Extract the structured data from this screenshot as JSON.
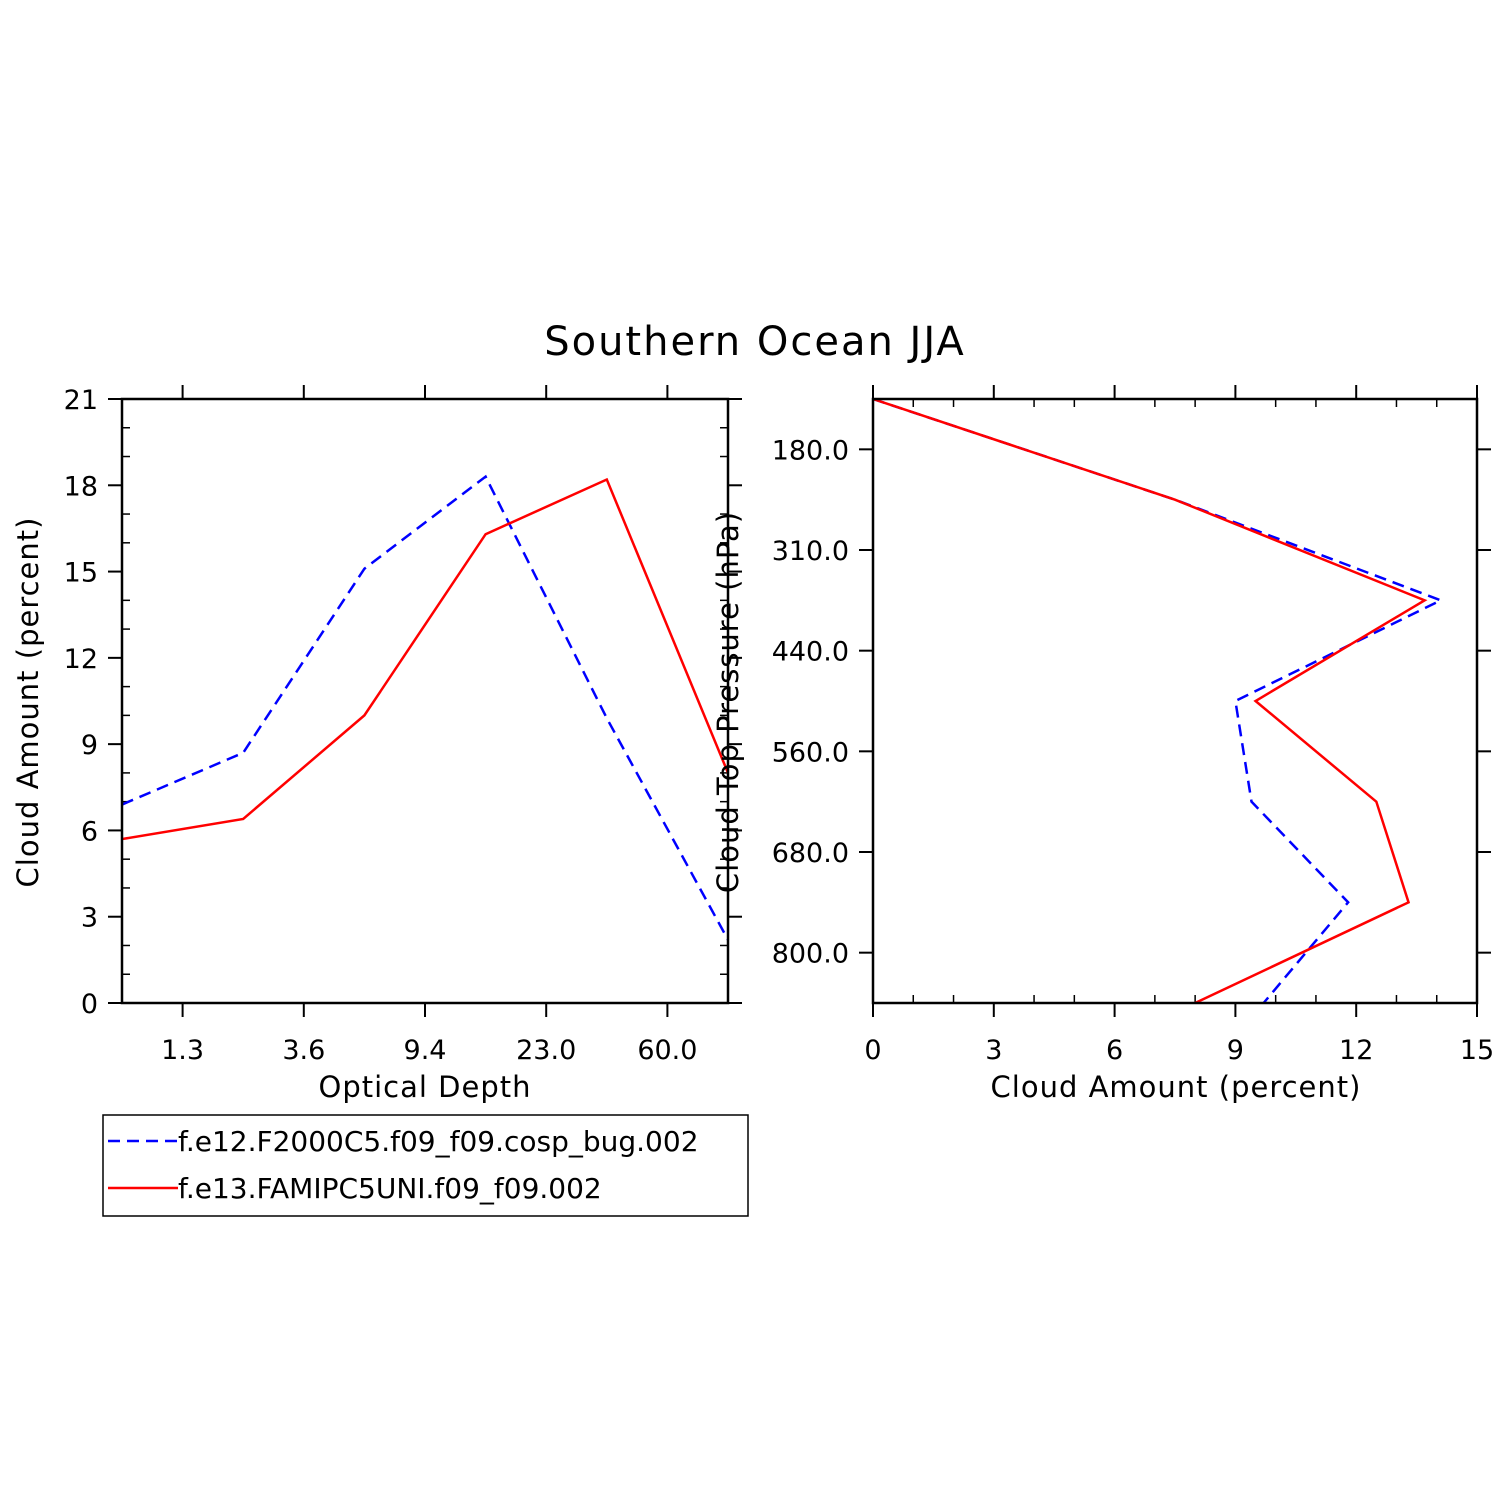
{
  "title": "Southern Ocean JJA",
  "colors": {
    "series1": "#0000ff",
    "series2": "#ff0000",
    "axes": "#000000"
  },
  "chart_data": [
    {
      "type": "line",
      "xlabel": "Optical Depth",
      "ylabel": "Cloud Amount (percent)",
      "x_tick_labels": [
        "1.3",
        "3.6",
        "9.4",
        "23.0",
        "60.0"
      ],
      "ylim": [
        0,
        21
      ],
      "y_ticks": [
        0,
        3,
        6,
        9,
        12,
        15,
        18,
        21
      ],
      "x_bins": [
        0,
        1,
        2,
        3,
        4,
        5
      ],
      "series": [
        {
          "name": "f.e12.F2000C5.f09_f09.cosp_bug.002",
          "style": "dashed",
          "color": "#0000ff",
          "values": [
            6.9,
            8.7,
            15.1,
            18.3,
            9.9,
            2.2
          ]
        },
        {
          "name": "f.e13.FAMIPC5UNI.f09_f09.002",
          "style": "solid",
          "color": "#ff0000",
          "values": [
            5.7,
            6.4,
            10.0,
            16.3,
            18.2,
            8.0
          ]
        }
      ],
      "legend_position": "below-left"
    },
    {
      "type": "line",
      "orientation": "horizontal-profile",
      "xlabel": "Cloud Amount (percent)",
      "ylabel": "Cloud Top Pressure (hPa)",
      "xlim": [
        0,
        15
      ],
      "x_ticks": [
        0,
        3,
        6,
        9,
        12,
        15
      ],
      "y_tick_labels": [
        "180.0",
        "310.0",
        "440.0",
        "560.0",
        "680.0",
        "800.0"
      ],
      "y_levels": [
        0,
        1,
        2,
        3,
        4,
        5,
        6
      ],
      "series": [
        {
          "name": "f.e12.F2000C5.f09_f09.cosp_bug.002",
          "style": "dashed",
          "color": "#0000ff",
          "values": [
            0.0,
            7.5,
            14.1,
            9.0,
            9.4,
            11.8,
            9.7
          ]
        },
        {
          "name": "f.e13.FAMIPC5UNI.f09_f09.002",
          "style": "solid",
          "color": "#ff0000",
          "values": [
            0.0,
            7.5,
            13.7,
            9.5,
            12.5,
            13.3,
            8.0
          ]
        }
      ]
    }
  ]
}
